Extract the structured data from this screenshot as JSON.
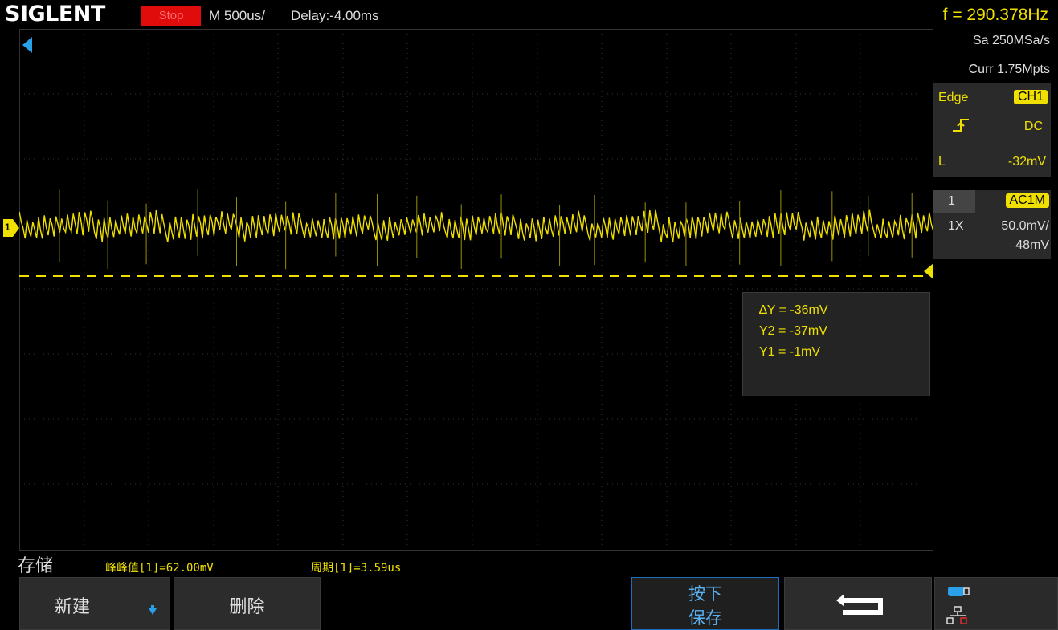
{
  "topbar": {
    "brand": "SIGLENT",
    "run_state": "Stop",
    "timebase": "M 500us/",
    "delay": "Delay:-4.00ms",
    "frequency": "f = 290.378Hz"
  },
  "acquisition": {
    "sample_rate": "Sa 250MSa/s",
    "memory_depth": "Curr 1.75Mpts"
  },
  "trigger": {
    "type": "Edge",
    "source": "CH1",
    "coupling": "DC",
    "level_label": "L",
    "level": "-32mV"
  },
  "channel": {
    "number": "1",
    "coupling": "AC1M",
    "probe": "1X",
    "scale": "50.0mV/",
    "offset": "48mV",
    "marker": "1"
  },
  "cursor_measure": {
    "delta_y": "∆Y = -36mV",
    "y2": "Y2 = -37mV",
    "y1": "Y1 = -1mV"
  },
  "status": {
    "menu_title": "存储",
    "measure1": "峰峰值[1]=62.00mV",
    "measure2": "周期[1]=3.59us"
  },
  "menu": {
    "new_label": "新建",
    "delete_label": "删除",
    "save_line1": "按下",
    "save_line2": "保存"
  },
  "colors": {
    "trace": "#f0e000",
    "stop": "#e00b0b",
    "accent": "#1e6eb8"
  }
}
